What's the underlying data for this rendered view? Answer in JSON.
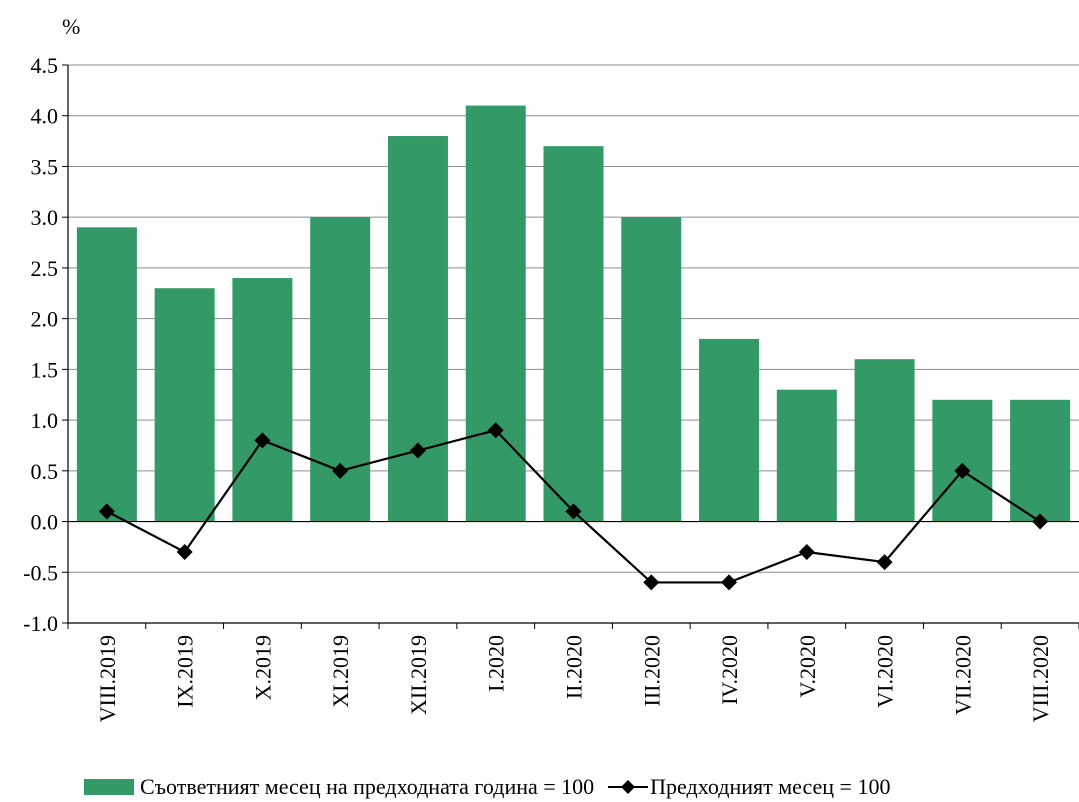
{
  "chart_data": {
    "type": "bar",
    "unit_label": "%",
    "categories": [
      "VIII.2019",
      "IX.2019",
      "X.2019",
      "XI.2019",
      "XII.2019",
      "I.2020",
      "II.2020",
      "III.2020",
      "IV.2020",
      "V.2020",
      "VI.2020",
      "VII.2020",
      "VIII.2020"
    ],
    "series": [
      {
        "name": "Съответният месец на предходната година = 100",
        "type": "bar",
        "color": "#339966",
        "values": [
          2.9,
          2.3,
          2.4,
          3.0,
          3.8,
          4.1,
          3.7,
          3.0,
          1.8,
          1.3,
          1.6,
          1.2,
          1.2
        ]
      },
      {
        "name": "Предходният месец = 100",
        "type": "line",
        "color": "#000000",
        "marker": "diamond",
        "values": [
          0.1,
          -0.3,
          0.8,
          0.5,
          0.7,
          0.9,
          0.1,
          -0.6,
          -0.6,
          -0.3,
          -0.4,
          0.5,
          0.0
        ]
      }
    ],
    "y_ticks": [
      "4.5",
      "4.0",
      "3.5",
      "3.0",
      "2.5",
      "2.0",
      "1.5",
      "1.0",
      "0.5",
      "0.0",
      "-0.5",
      "-1.0"
    ],
    "ylim": [
      -1.0,
      4.5
    ],
    "grid": true,
    "legend": "bottom"
  }
}
